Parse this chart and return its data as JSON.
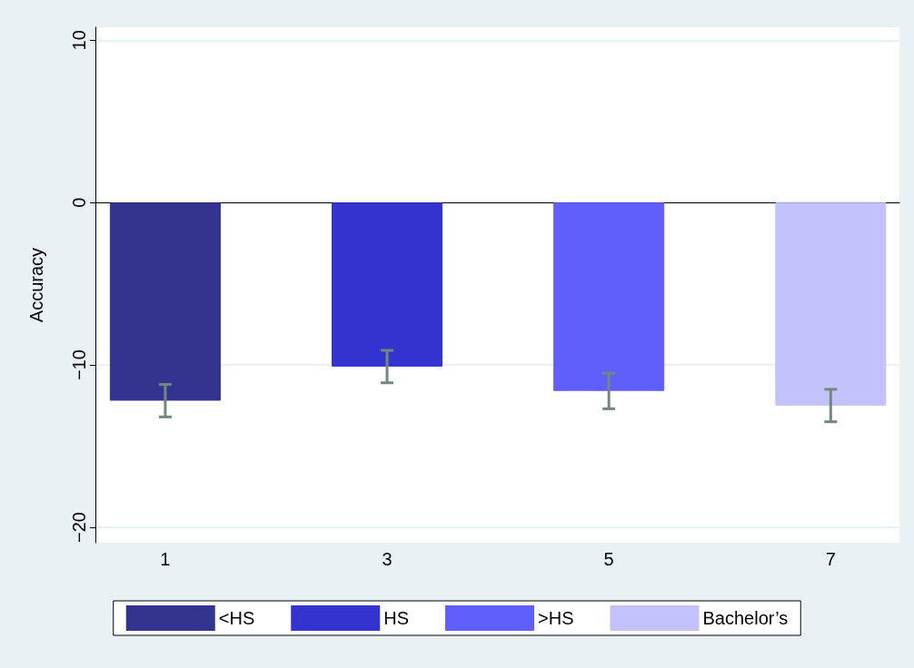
{
  "chart_data": {
    "type": "bar",
    "ylabel": "Accuracy",
    "xlim": [
      0.37,
      7.62
    ],
    "xticks": [
      1,
      3,
      5,
      7
    ],
    "ylim": [
      -20.95,
      10.8
    ],
    "yticks": [
      {
        "value": -20,
        "label": "−20"
      },
      {
        "value": -10,
        "label": "−10"
      },
      0,
      10
    ],
    "grid": "y",
    "legend": "bottom",
    "series": [
      {
        "name": "<HS",
        "color": "#32348f",
        "x": [
          1
        ],
        "values": [
          -12.2
        ],
        "errors": [
          [
            -13.2,
            -11.2
          ]
        ]
      },
      {
        "name": "HS",
        "color": "#3334d0",
        "x": [
          3
        ],
        "values": [
          -10.1
        ],
        "errors": [
          [
            -11.1,
            -9.1
          ]
        ]
      },
      {
        "name": ">HS",
        "color": "#5f5ffe",
        "x": [
          5
        ],
        "values": [
          -11.6
        ],
        "errors": [
          [
            -12.7,
            -10.5
          ]
        ]
      },
      {
        "name": "Bachelor’s",
        "color": "#c3c2fc",
        "x": [
          7
        ],
        "values": [
          -12.5
        ],
        "errors": [
          [
            -13.5,
            -11.5
          ]
        ]
      }
    ]
  }
}
